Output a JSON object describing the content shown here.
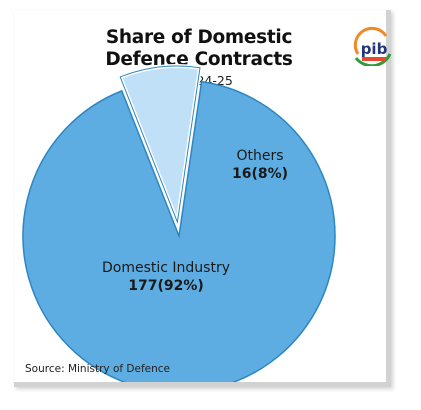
{
  "header": {
    "title_line1": "Share of Domestic",
    "title_line2": "Defence Contracts",
    "subtitle": "in 2024-25"
  },
  "logo": {
    "icon": "pib-logo-icon",
    "text": "pib"
  },
  "source": "Source: Ministry of Defence",
  "colors": {
    "main_slice": "#5dade2",
    "other_slice": "#bfe0f6",
    "slice_border": "#2e86c1",
    "logo_orange": "#f08a24",
    "logo_green": "#2e9b3a",
    "logo_navy": "#23357a"
  },
  "chart_data": {
    "type": "pie",
    "title": "Share of Domestic Defence Contracts",
    "subtitle": "in 2024-25",
    "categories": [
      "Others",
      "Domestic Industry"
    ],
    "values": [
      16,
      177
    ],
    "percent_labels": [
      "16(8%)",
      "177(92%)"
    ],
    "exploded": [
      "Others"
    ]
  }
}
